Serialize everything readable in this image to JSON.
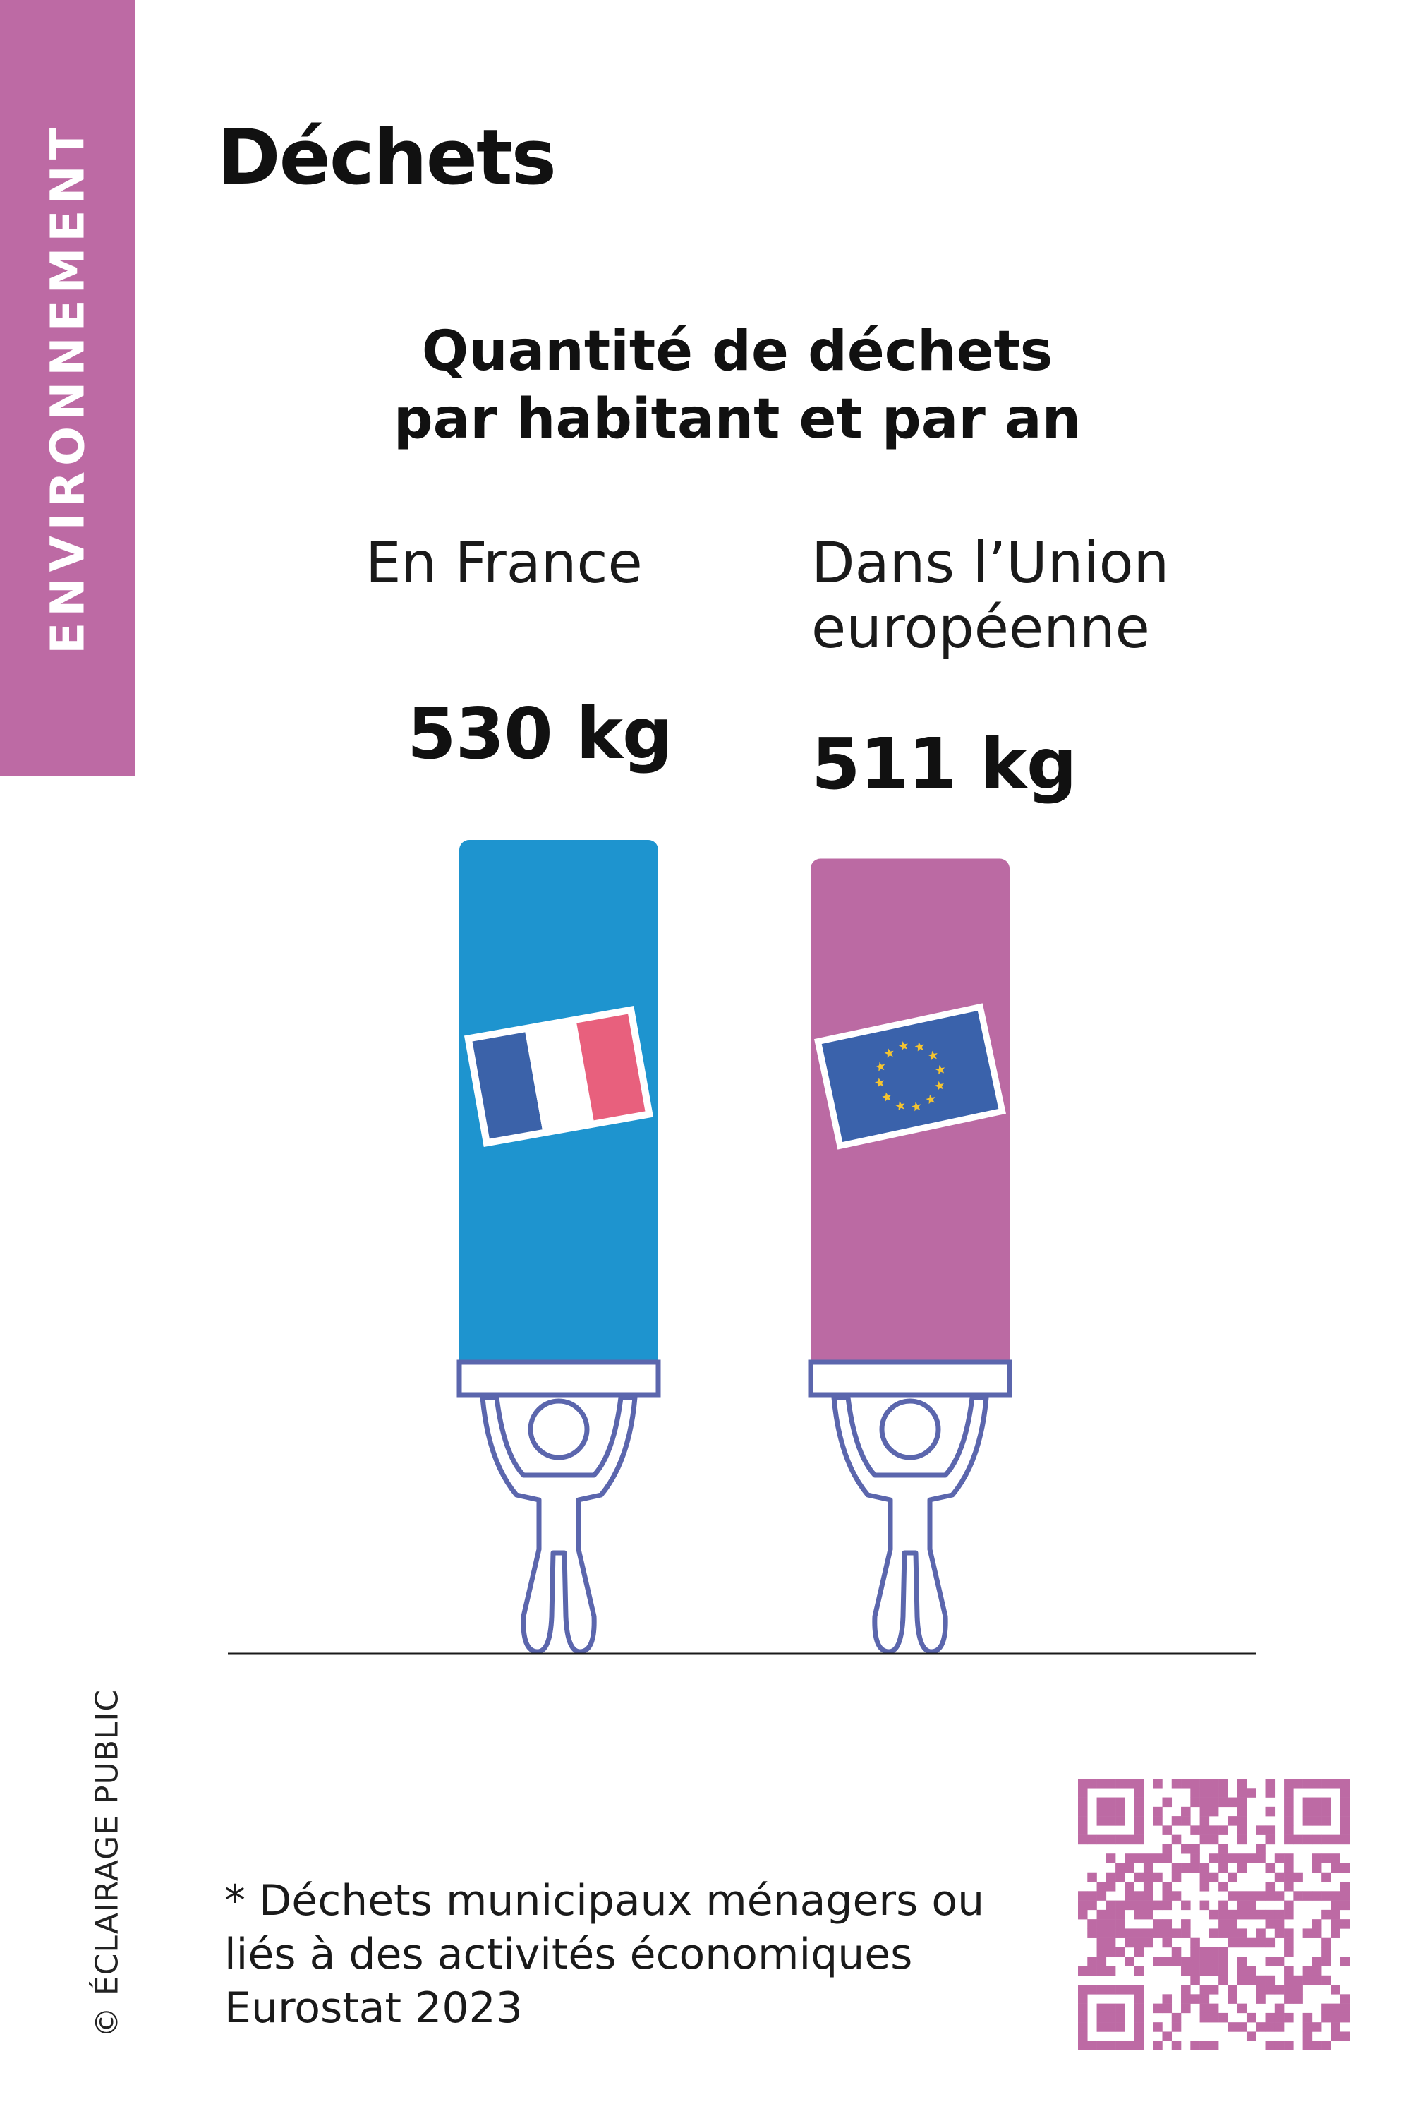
{
  "section": "ENVIRONNEMENT",
  "title": "Déchets",
  "credit": "© ÉCLAIRAGE PUBLIC",
  "footnote": {
    "line1": "* Déchets municipaux ménagers ou",
    "line2": "liés à des activités économiques",
    "line3": "Eurostat 2023"
  },
  "colors": {
    "accent": "#bd6aa4",
    "france_bar": "#1e94cf",
    "eu_bar": "#bb6aa3",
    "figure_stroke": "#5b66ad",
    "flag_blue": "#3b62a9",
    "flag_red": "#e8607d",
    "eu_flag_blue": "#3a62ab",
    "eu_flag_stars": "#f4c430"
  },
  "icons": [
    "france-flag-icon",
    "eu-flag-icon",
    "person-lifting-icon",
    "qr-code-icon"
  ],
  "chart_data": {
    "type": "bar",
    "title": "Quantité de déchets par habitant et par an",
    "title_lines": [
      "Quantité de déchets",
      "par habitant et par an"
    ],
    "categories": [
      "En France",
      "Dans l’Union européenne"
    ],
    "category_lines": [
      [
        "En France"
      ],
      [
        "Dans l’Union",
        "européenne"
      ]
    ],
    "values": [
      530,
      511
    ],
    "value_labels": [
      "530 kg",
      "511 kg"
    ],
    "unit": "kg",
    "xlabel": "",
    "ylabel": "",
    "grid": false,
    "legend": "none"
  }
}
